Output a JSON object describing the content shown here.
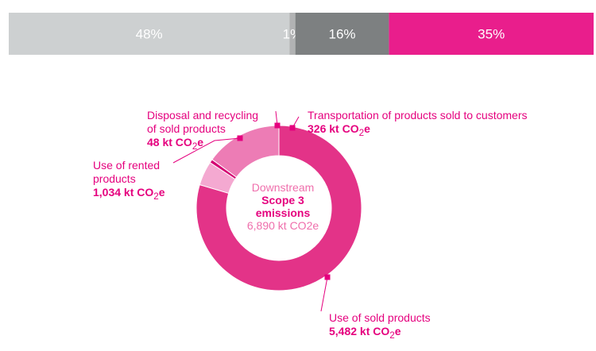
{
  "colors": {
    "accent": "#e5007e",
    "segments": [
      "#ed7cb5",
      "#e33388",
      "#f4a9d1",
      "#d40072"
    ]
  },
  "chart_data": [
    {
      "type": "bar",
      "orientation": "horizontal-stacked",
      "series": [
        {
          "label": "48%",
          "value": 48,
          "color": "#cdd0d1"
        },
        {
          "label": "1%",
          "value": 1,
          "color": "#b1b2b3"
        },
        {
          "label": "16%",
          "value": 16,
          "color": "#7d8081"
        },
        {
          "label": "35%",
          "value": 35,
          "color": "#e91e8c"
        }
      ]
    },
    {
      "type": "pie",
      "style": "donut",
      "center": [
        "Downstream",
        "Scope 3",
        "emissions",
        "6,890 kt CO2e"
      ],
      "slices": [
        {
          "name": "Use of rented products",
          "value": 1034,
          "lines": [
            "Use of rented",
            "products",
            "1,034 kt CO",
            "e"
          ],
          "color": "#ed7cb5"
        },
        {
          "name": "Use of sold products",
          "value": 5482,
          "lines": [
            "Use of sold products",
            "5,482 kt CO",
            "e"
          ],
          "color": "#e33388"
        },
        {
          "name": "Transportation of products sold to customers",
          "value": 326,
          "lines": [
            "Transportation of products sold to customers",
            "326 kt CO",
            "e"
          ],
          "color": "#f4a9d1"
        },
        {
          "name": "Disposal and recycling of sold products",
          "value": 48,
          "lines": [
            "Disposal and recycling",
            "of sold products",
            "48 kt CO",
            "e"
          ],
          "color": "#d40072"
        }
      ],
      "subscript": "2"
    }
  ]
}
